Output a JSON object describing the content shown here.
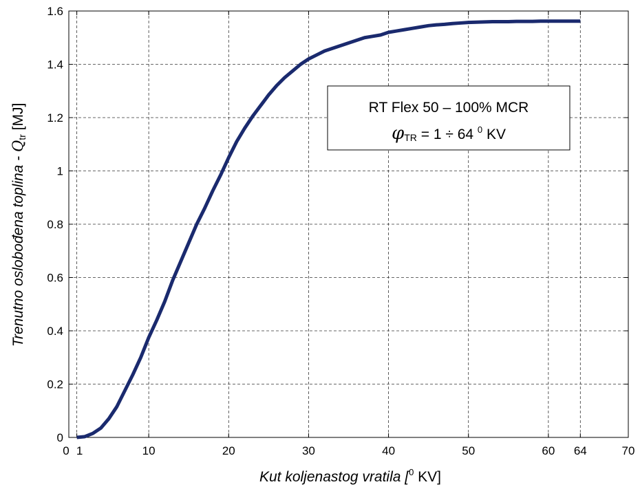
{
  "chart_data": {
    "type": "line",
    "xlabel_text": "Kut koljenastog vratila [",
    "xlabel_sup": "0",
    "xlabel_unit": " KV]",
    "ylabel_text": "Trenutno oslobođena toplina - ",
    "ylabel_sym": "Q",
    "ylabel_sub": "tr",
    "ylabel_unit": " [MJ]",
    "xlim": [
      0,
      70
    ],
    "ylim": [
      0,
      1.6
    ],
    "x_ticks": [
      0,
      1,
      10,
      20,
      30,
      40,
      50,
      60,
      64,
      70
    ],
    "x_tick_labels": [
      "0",
      "1",
      "10",
      "20",
      "30",
      "40",
      "50",
      "60",
      "64",
      "70"
    ],
    "x_gridlines": [
      1,
      10,
      20,
      30,
      40,
      50,
      60,
      64
    ],
    "y_ticks": [
      0,
      0.2,
      0.4,
      0.6,
      0.8,
      1.0,
      1.2,
      1.4,
      1.6
    ],
    "y_tick_labels": [
      "0",
      "0.2",
      "0.4",
      "0.6",
      "0.8",
      "1",
      "1.2",
      "1.4",
      "1.6"
    ],
    "grid": true,
    "series": [
      {
        "color": "#1a2a6e",
        "x": [
          1,
          2,
          3,
          4,
          5,
          6,
          7,
          8,
          9,
          10,
          11,
          12,
          13,
          14,
          15,
          16,
          17,
          18,
          19,
          20,
          21,
          22,
          23,
          24,
          25,
          26,
          27,
          28,
          29,
          30,
          31,
          32,
          33,
          34,
          35,
          36,
          37,
          38,
          39,
          40,
          41,
          42,
          43,
          44,
          45,
          46,
          47,
          48,
          49,
          50,
          51,
          52,
          53,
          54,
          55,
          56,
          57,
          58,
          59,
          60,
          61,
          62,
          63,
          64
        ],
        "y": [
          0,
          0.003,
          0.015,
          0.035,
          0.07,
          0.115,
          0.175,
          0.235,
          0.3,
          0.375,
          0.44,
          0.51,
          0.59,
          0.66,
          0.73,
          0.8,
          0.86,
          0.925,
          0.985,
          1.05,
          1.11,
          1.16,
          1.205,
          1.245,
          1.285,
          1.32,
          1.35,
          1.375,
          1.4,
          1.42,
          1.435,
          1.45,
          1.46,
          1.47,
          1.48,
          1.49,
          1.5,
          1.505,
          1.51,
          1.52,
          1.525,
          1.53,
          1.535,
          1.54,
          1.545,
          1.548,
          1.55,
          1.553,
          1.555,
          1.557,
          1.558,
          1.559,
          1.56,
          1.56,
          1.56,
          1.561,
          1.561,
          1.561,
          1.562,
          1.562,
          1.562,
          1.562,
          1.562,
          1.562
        ]
      }
    ],
    "legend_location": "top-right",
    "legend_line1": "RT Flex 50 – 100% MCR",
    "legend_phi": "φ",
    "legend_sub": "TR",
    "legend_eq": " = 1 ÷ 64 ",
    "legend_sup": "0",
    "legend_unit": " KV"
  }
}
